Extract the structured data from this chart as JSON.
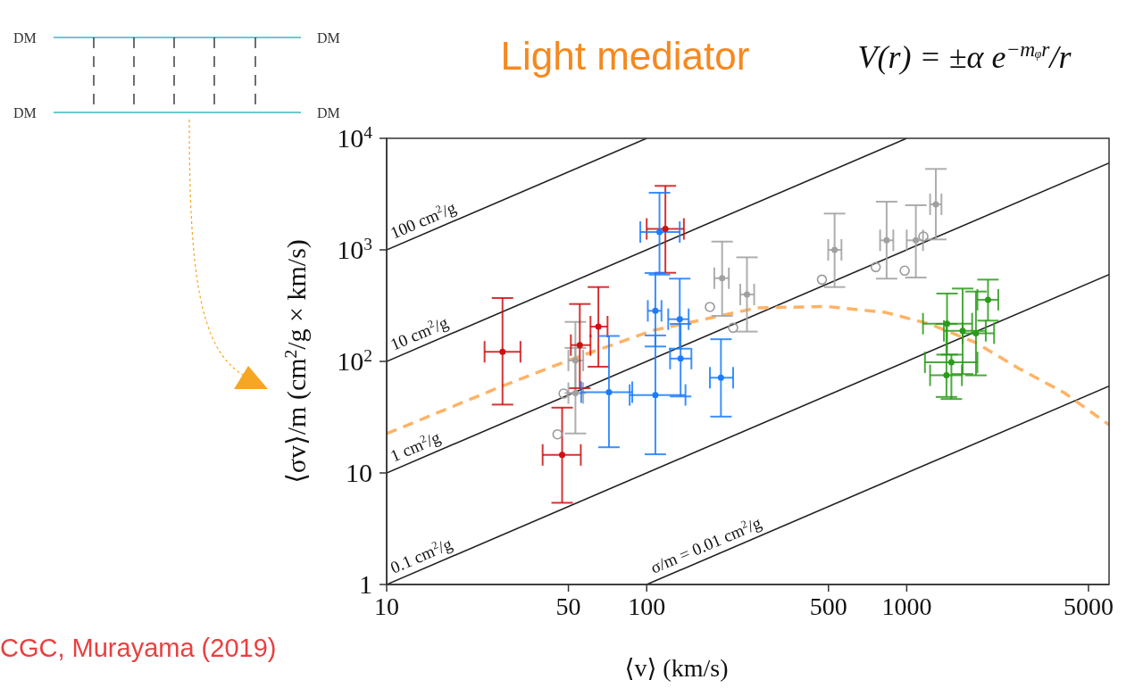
{
  "chart_data": {
    "type": "scatter",
    "title": "Light mediator",
    "xlabel": "⟨v⟩    (km/s)",
    "ylabel": "⟨σv⟩/m    (cm$^{2}$/g × km/s)",
    "log": "xy",
    "grid": false,
    "marker": "circle",
    "annotations": [
      "V(r) = ±α e$^{−mᵩr}$/r",
      "CGC, Murayama  (2019)",
      "DM",
      "DM",
      "DM",
      "DM"
    ],
    "xlim": [
      10,
      6000
    ],
    "xticks": [
      10,
      50,
      100,
      500,
      1000,
      5000
    ],
    "ylim": [
      1,
      10000
    ],
    "yticks": [
      1,
      10,
      {
        "value": 100,
        "label": "10$^{2}$"
      },
      {
        "value": 1000,
        "label": "10$^{3}$"
      },
      {
        "value": 10000,
        "label": "10$^{4}$"
      }
    ],
    "series": [
      {
        "type": "line",
        "name": "100 cm$^{2}$/g",
        "color": "#222222",
        "marker": "none",
        "line_style": "solid",
        "x": [
          10,
          100
        ],
        "values": [
          1000,
          10000
        ]
      },
      {
        "type": "line",
        "name": "10 cm$^{2}$/g",
        "color": "#222222",
        "marker": "none",
        "line_style": "solid",
        "x": [
          10,
          1000
        ],
        "values": [
          100,
          10000
        ]
      },
      {
        "type": "line",
        "name": "1 cm$^{2}$/g",
        "color": "#222222",
        "marker": "none",
        "line_style": "solid",
        "x": [
          10,
          6000
        ],
        "values": [
          10,
          6000
        ]
      },
      {
        "type": "line",
        "name": "0.1 cm$^{2}$/g",
        "color": "#222222",
        "marker": "none",
        "line_style": "solid",
        "x": [
          10,
          6000
        ],
        "values": [
          1,
          600
        ]
      },
      {
        "type": "line",
        "name": "σ/m = 0.01 cm$^{2}$/g",
        "color": "#222222",
        "marker": "none",
        "line_style": "solid",
        "x": [
          100,
          6000
        ],
        "values": [
          1,
          60
        ]
      },
      {
        "type": "line",
        "color": "#ffb366",
        "marker": "none",
        "line_style": "dashed",
        "x": [
          10,
          28.3,
          50.5,
          106,
          266,
          488,
          828,
          1230,
          1823,
          2710,
          4027,
          6000
        ],
        "values": [
          22.5,
          61,
          103,
          190,
          302,
          311,
          275,
          216,
          149,
          86,
          52.5,
          27
        ]
      },
      {
        "color": "#999999",
        "x": [
          45.4,
          47.9,
          175,
          215,
          472,
          760,
          982,
          1159
        ],
        "values": [
          22.2,
          51.5,
          308,
          200,
          541,
          700,
          651,
          1318
        ]
      },
      {
        "color": "#a0a0a0",
        "x": [
          53.2,
          53.2,
          195,
          243,
          528,
          837,
          1084,
          1294
        ],
        "values": [
          102,
          52,
          557,
          398,
          1000,
          1218,
          1218,
          2560
        ],
        "errors": [
          [
            52,
            226
          ],
          [
            22.6,
            132
          ],
          [
            256,
            1186
          ],
          [
            185,
            857
          ],
          [
            464,
            2115
          ],
          [
            552,
            2704
          ],
          [
            565,
            2512
          ],
          [
            1240,
            5315
          ]
        ],
        "xerrors": [
          [
            50,
            57
          ],
          [
            50,
            57
          ],
          [
            182,
            207
          ],
          [
            229,
            259
          ],
          [
            499,
            561
          ],
          [
            790,
            888
          ],
          [
            1000,
            1155
          ],
          [
            1230,
            1360
          ]
        ]
      },
      {
        "color": "#cc1111",
        "x": [
          27.9,
          47.3,
          55.3,
          65.2,
          118
        ],
        "values": [
          122,
          14.5,
          140,
          205,
          1540
        ],
        "errors": [
          [
            41,
            370
          ],
          [
            5.4,
            38.5
          ],
          [
            57.5,
            327
          ],
          [
            89.6,
            464
          ],
          [
            623,
            3745
          ]
        ],
        "xerrors": [
          [
            23.8,
            32.7
          ],
          [
            39.8,
            55.8
          ],
          [
            51.1,
            60.8
          ],
          [
            60.8,
            70.7
          ],
          [
            100,
            139
          ]
        ]
      },
      {
        "color": "#1a7cff",
        "x": [
          112,
          108,
          134,
          135,
          108,
          71.6,
          193
        ],
        "values": [
          1445,
          284,
          239,
          106,
          50,
          53,
          71.4
        ],
        "errors": [
          [
            600,
            3250
          ],
          [
            136,
            620
          ],
          [
            130,
            552
          ],
          [
            48.5,
            217
          ],
          [
            14.7,
            171
          ],
          [
            17,
            169
          ],
          [
            32,
            158
          ]
        ],
        "xerrors": [
          [
            94.5,
            134
          ],
          [
            101,
            114
          ],
          [
            121,
            145
          ],
          [
            123,
            148.6
          ],
          [
            86,
            141
          ],
          [
            56,
            88
          ],
          [
            175,
            215
          ]
        ]
      },
      {
        "color": "#2a9a1a",
        "x": [
          1429,
          1641,
          1846,
          2054,
          1485,
          1422
        ],
        "values": [
          218,
          188,
          179,
          357,
          98,
          75
        ],
        "errors": [
          [
            115,
            406
          ],
          [
            77,
            450
          ],
          [
            75,
            423
          ],
          [
            232,
            541
          ],
          [
            46,
            115
          ],
          [
            48,
            217
          ]
        ],
        "xerrors": [
          [
            1155,
            1785
          ],
          [
            1390,
            2014
          ],
          [
            1641,
            2168
          ],
          [
            1870,
            2250
          ],
          [
            1175,
            1870
          ],
          [
            1230,
            1630
          ]
        ]
      }
    ]
  }
}
